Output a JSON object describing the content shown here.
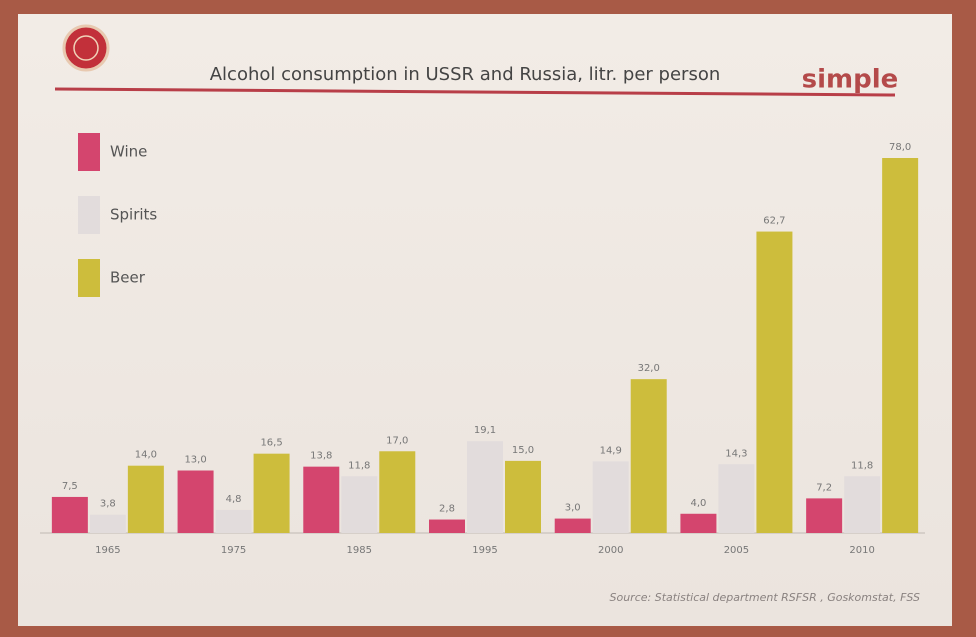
{
  "logo": "simple",
  "chart_data": {
    "type": "bar",
    "title": "Alcohol consumption in USSR and Russia, litr. per person",
    "categories": [
      "1965",
      "1975",
      "1985",
      "1995",
      "2000",
      "2005",
      "2010"
    ],
    "series": [
      {
        "name": "Wine",
        "color": "#d4456e",
        "values": [
          7.5,
          13.0,
          13.8,
          2.8,
          3.0,
          4.0,
          7.2
        ],
        "value_labels": [
          "7,5",
          "13,0",
          "13,8",
          "2,8",
          "3,0",
          "4,0",
          "7,2"
        ]
      },
      {
        "name": "Spirits",
        "color": "#e2dcdc",
        "values": [
          3.8,
          4.8,
          11.8,
          19.1,
          14.9,
          14.3,
          11.8
        ],
        "value_labels": [
          "3,8",
          "4,8",
          "11,8",
          "19,1",
          "14,9",
          "14,3",
          "11,8"
        ]
      },
      {
        "name": "Beer",
        "color": "#cdbd3c",
        "values": [
          14.0,
          16.5,
          17.0,
          15.0,
          32.0,
          62.7,
          78.0
        ],
        "value_labels": [
          "14,0",
          "16,5",
          "17,0",
          "15,0",
          "32,0",
          "62,7",
          "78,0"
        ]
      }
    ],
    "source": "Source: Statistical department RSFSR , Goskomstat, FSS"
  }
}
